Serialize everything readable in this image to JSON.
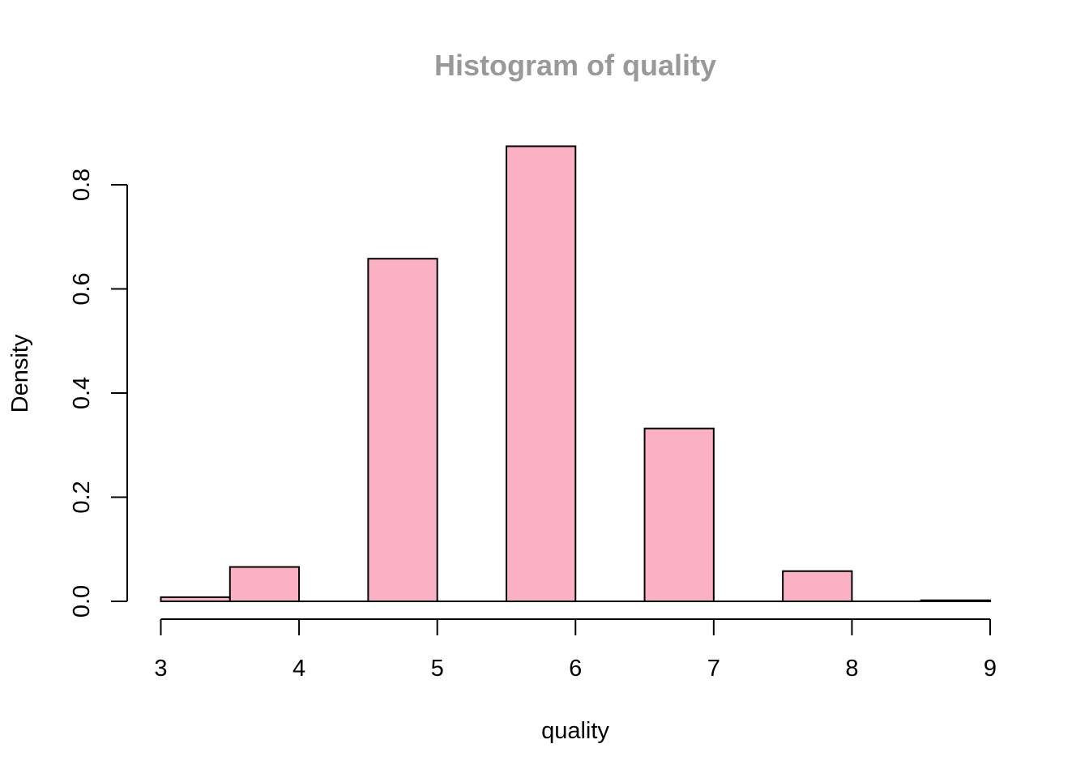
{
  "chart_data": {
    "type": "bar",
    "title": "Histogram of quality",
    "xlabel": "quality",
    "ylabel": "Density",
    "bins": [
      {
        "from": 3.0,
        "to": 3.5,
        "density": 0.008
      },
      {
        "from": 3.5,
        "to": 4.0,
        "density": 0.066
      },
      {
        "from": 4.0,
        "to": 4.5,
        "density": 0.0
      },
      {
        "from": 4.5,
        "to": 5.0,
        "density": 0.658
      },
      {
        "from": 5.0,
        "to": 5.5,
        "density": 0.0
      },
      {
        "from": 5.5,
        "to": 6.0,
        "density": 0.874
      },
      {
        "from": 6.0,
        "to": 6.5,
        "density": 0.0
      },
      {
        "from": 6.5,
        "to": 7.0,
        "density": 0.332
      },
      {
        "from": 7.0,
        "to": 7.5,
        "density": 0.0
      },
      {
        "from": 7.5,
        "to": 8.0,
        "density": 0.058
      },
      {
        "from": 8.0,
        "to": 8.5,
        "density": 0.0
      },
      {
        "from": 8.5,
        "to": 9.0,
        "density": 0.002
      }
    ],
    "xlim": [
      3,
      9
    ],
    "ylim": [
      0,
      0.8
    ],
    "x_ticks": [
      3,
      4,
      5,
      6,
      7,
      8,
      9
    ],
    "y_ticks": [
      "0.0",
      "0.2",
      "0.4",
      "0.6",
      "0.8"
    ],
    "grid": false,
    "colors": {
      "bar_fill": "#fcb0c3",
      "bar_stroke": "#000000",
      "title": "#999999"
    }
  }
}
